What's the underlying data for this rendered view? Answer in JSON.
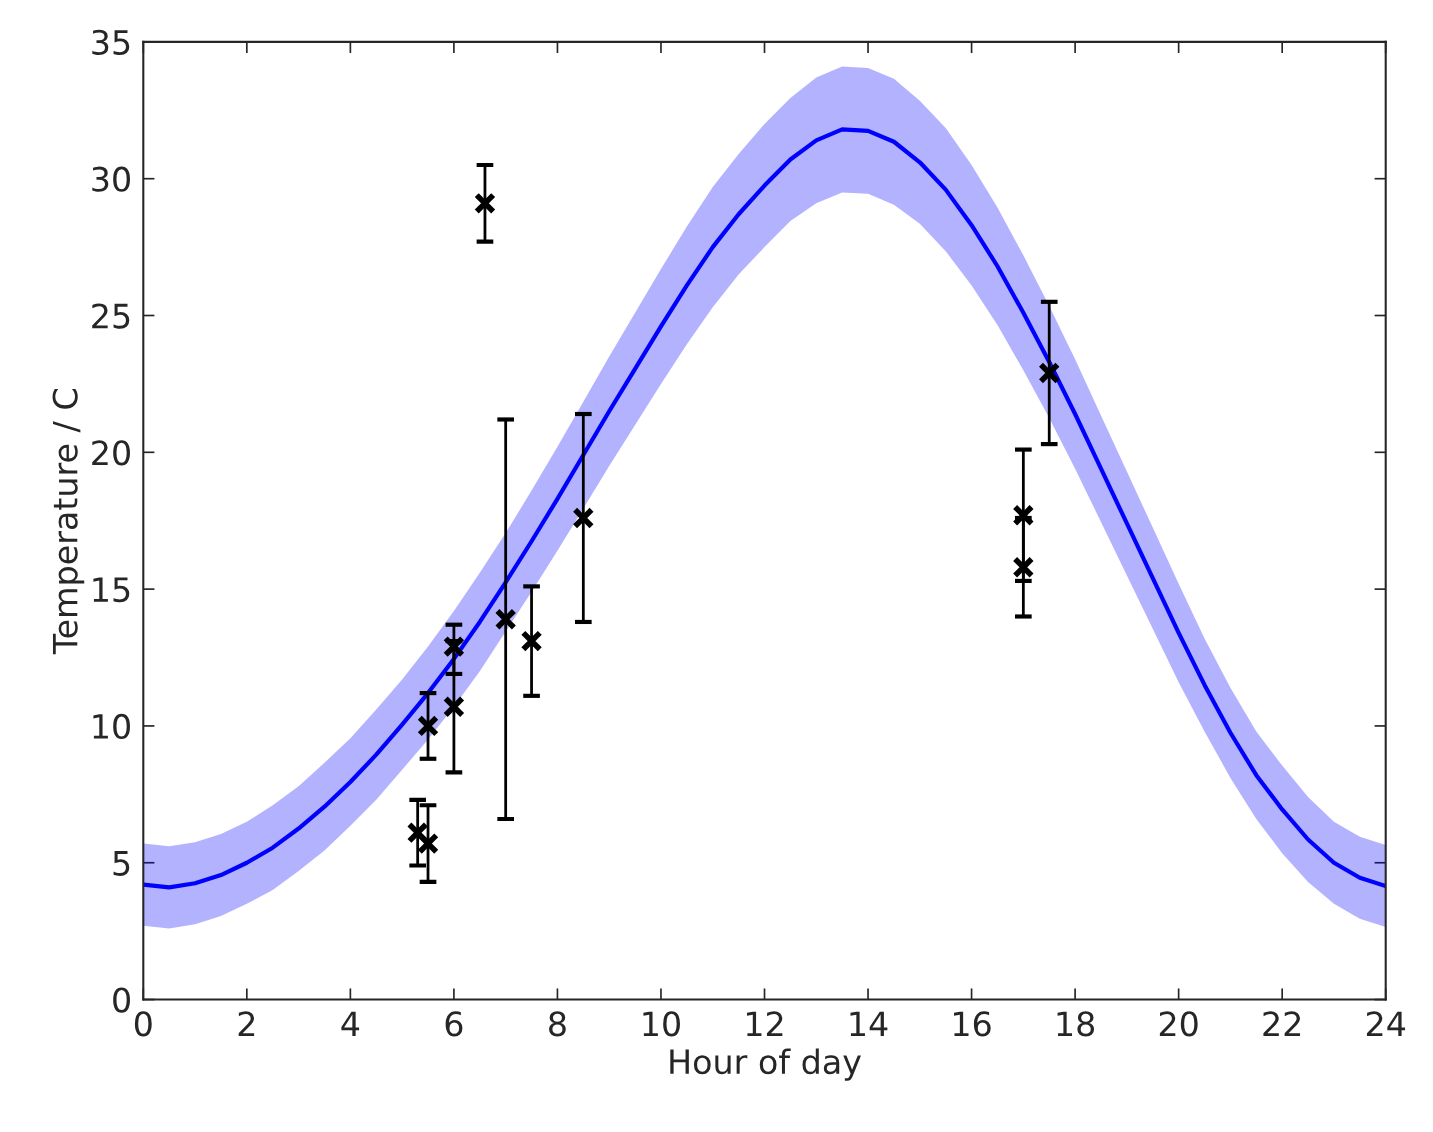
{
  "chart_data": {
    "type": "line",
    "xlabel": "Hour of day",
    "ylabel": "Temperature / C",
    "xlim": [
      0,
      24
    ],
    "ylim": [
      0,
      35
    ],
    "xticks": [
      0,
      2,
      4,
      6,
      8,
      10,
      12,
      14,
      16,
      18,
      20,
      22,
      24
    ],
    "yticks": [
      0,
      5,
      10,
      15,
      20,
      25,
      30,
      35
    ],
    "grid": false,
    "series": [
      {
        "color": "#0000ff",
        "line_style": "solid",
        "marker": "none",
        "x": [
          0,
          0.5,
          1,
          1.5,
          2,
          2.5,
          3,
          3.5,
          4,
          4.5,
          5,
          5.5,
          6,
          6.5,
          7,
          7.5,
          8,
          8.5,
          9,
          9.5,
          10,
          10.5,
          11,
          11.5,
          12,
          12.5,
          13,
          13.5,
          14,
          14.5,
          15,
          15.5,
          16,
          16.5,
          17,
          17.5,
          18,
          18.5,
          19,
          19.5,
          20,
          20.5,
          21,
          21.5,
          22,
          22.5,
          23,
          23.5,
          24
        ],
        "values": [
          4.2,
          4.1,
          4.25,
          4.55,
          5.0,
          5.55,
          6.25,
          7.05,
          7.95,
          8.95,
          10.05,
          11.2,
          12.45,
          13.8,
          15.25,
          16.75,
          18.3,
          19.9,
          21.5,
          23.05,
          24.6,
          26.1,
          27.5,
          28.7,
          29.75,
          30.7,
          31.4,
          31.8,
          31.75,
          31.35,
          30.6,
          29.6,
          28.3,
          26.8,
          25.1,
          23.3,
          21.4,
          19.4,
          17.4,
          15.4,
          13.4,
          11.5,
          9.75,
          8.2,
          6.95,
          5.85,
          5.0,
          4.45,
          4.15
        ],
        "lower": [
          2.7,
          2.6,
          2.75,
          3.05,
          3.5,
          4.0,
          4.7,
          5.45,
          6.35,
          7.3,
          8.4,
          9.5,
          10.7,
          12.0,
          13.45,
          14.9,
          16.4,
          17.95,
          19.5,
          21.0,
          22.5,
          23.95,
          25.3,
          26.5,
          27.5,
          28.45,
          29.1,
          29.5,
          29.45,
          29.05,
          28.35,
          27.35,
          26.1,
          24.65,
          23.0,
          21.25,
          19.4,
          17.45,
          15.5,
          13.55,
          11.6,
          9.8,
          8.1,
          6.6,
          5.35,
          4.3,
          3.5,
          2.95,
          2.65
        ],
        "upper": [
          5.7,
          5.6,
          5.75,
          6.05,
          6.5,
          7.1,
          7.8,
          8.65,
          9.55,
          10.6,
          11.7,
          12.9,
          14.2,
          15.6,
          17.05,
          18.6,
          20.2,
          21.85,
          23.5,
          25.1,
          26.7,
          28.25,
          29.7,
          30.9,
          32.0,
          32.95,
          33.7,
          34.1,
          34.05,
          33.65,
          32.85,
          31.85,
          30.5,
          28.95,
          27.2,
          25.35,
          23.4,
          21.35,
          19.3,
          17.25,
          15.2,
          13.2,
          11.4,
          9.8,
          8.55,
          7.4,
          6.5,
          5.95,
          5.65
        ]
      },
      {
        "type": "scatter",
        "color": "#000000",
        "marker": "cross",
        "x": [
          5.3,
          5.5,
          5.5,
          6.0,
          6.0,
          6.6,
          7.0,
          7.5,
          8.5,
          17.0,
          17.0,
          17.5
        ],
        "values": [
          6.1,
          5.7,
          10.0,
          12.9,
          10.7,
          29.1,
          13.9,
          13.1,
          17.6,
          17.7,
          15.8,
          22.9
        ],
        "errors": [
          [
            4.9,
            7.3
          ],
          [
            4.3,
            7.1
          ],
          [
            8.8,
            11.2
          ],
          [
            11.9,
            13.7
          ],
          [
            8.3,
            13.1
          ],
          [
            27.7,
            30.5
          ],
          [
            6.6,
            21.2
          ],
          [
            11.1,
            15.1
          ],
          [
            13.8,
            21.4
          ],
          [
            15.3,
            20.1
          ],
          [
            14.0,
            17.6
          ],
          [
            20.3,
            25.5
          ]
        ]
      }
    ]
  }
}
